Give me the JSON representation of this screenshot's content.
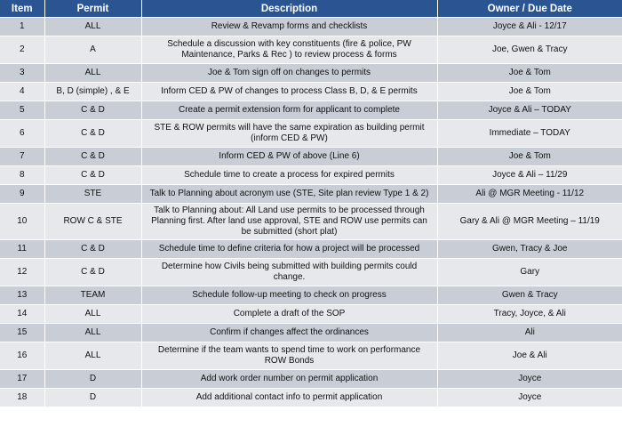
{
  "headers": {
    "item": "Item",
    "permit": "Permit",
    "description": "Description",
    "owner": "Owner / Due Date"
  },
  "rows": [
    {
      "item": "1",
      "permit": "ALL",
      "description": "Review & Revamp forms and checklists",
      "owner": "Joyce & Ali -  12/17"
    },
    {
      "item": "2",
      "permit": "A",
      "description": "Schedule a discussion with key constituents (fire & police, PW Maintenance, Parks & Rec ) to review process & forms",
      "owner": "Joe, Gwen & Tracy"
    },
    {
      "item": "3",
      "permit": "ALL",
      "description": "Joe & Tom sign off on changes to permits",
      "owner": "Joe & Tom"
    },
    {
      "item": "4",
      "permit": "B, D (simple) , & E",
      "description": "Inform CED & PW of changes to process Class B, D, & E permits",
      "owner": "Joe & Tom"
    },
    {
      "item": "5",
      "permit": "C & D",
      "description": "Create a permit extension form for applicant to complete",
      "owner": "Joyce & Ali – TODAY"
    },
    {
      "item": "6",
      "permit": "C & D",
      "description": "STE & ROW permits will have the same expiration as building permit (inform CED & PW)",
      "owner": "Immediate – TODAY"
    },
    {
      "item": "7",
      "permit": "C & D",
      "description": "Inform CED & PW of above (Line 6)",
      "owner": "Joe & Tom"
    },
    {
      "item": "8",
      "permit": "C & D",
      "description": "Schedule time to create a process for expired permits",
      "owner": "Joyce & Ali – 11/29"
    },
    {
      "item": "9",
      "permit": "STE",
      "description": "Talk to Planning about acronym use (STE, Site plan review Type 1 & 2)",
      "owner": "Ali @ MGR Meeting - 11/12"
    },
    {
      "item": "10",
      "permit": "ROW C & STE",
      "description": "Talk to Planning about: All Land use permits to be processed through Planning first. After land use approval, STE and ROW use permits can be submitted (short plat)",
      "owner": "Gary & Ali @ MGR Meeting – 11/19"
    },
    {
      "item": "11",
      "permit": "C & D",
      "description": "Schedule time to define criteria for how a project will be processed",
      "owner": "Gwen, Tracy & Joe"
    },
    {
      "item": "12",
      "permit": "C & D",
      "description": "Determine how Civils being submitted with  building permits could change.",
      "owner": "Gary"
    },
    {
      "item": "13",
      "permit": "TEAM",
      "description": "Schedule follow-up meeting to check on progress",
      "owner": "Gwen & Tracy"
    },
    {
      "item": "14",
      "permit": "ALL",
      "description": "Complete a draft of the SOP",
      "owner": "Tracy, Joyce, & Ali"
    },
    {
      "item": "15",
      "permit": "ALL",
      "description": "Confirm if changes affect the ordinances",
      "owner": "Ali"
    },
    {
      "item": "16",
      "permit": "ALL",
      "description": "Determine if the team wants to spend time to work on performance ROW Bonds",
      "owner": "Joe & Ali"
    },
    {
      "item": "17",
      "permit": "D",
      "description": "Add work order number on permit application",
      "owner": "Joyce"
    },
    {
      "item": "18",
      "permit": "D",
      "description": "Add additional contact info to permit application",
      "owner": "Joyce"
    }
  ]
}
